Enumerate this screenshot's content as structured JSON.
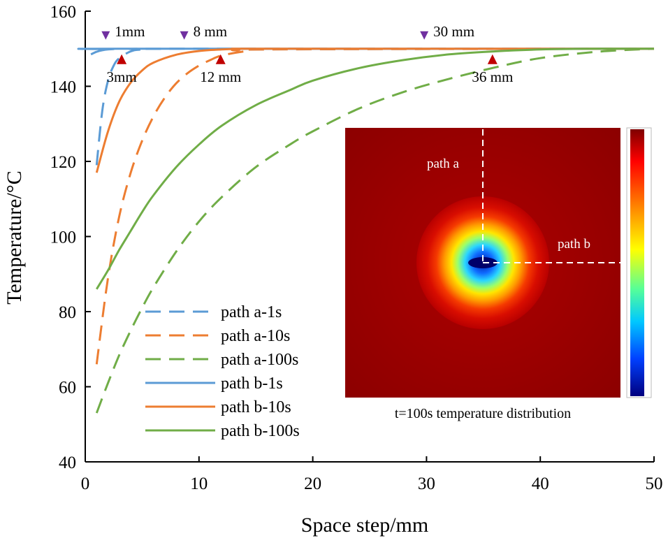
{
  "chart_data": {
    "type": "line",
    "title": "",
    "xlabel": "Space step/mm",
    "ylabel": "Temperature/°C",
    "xlim": [
      0,
      50
    ],
    "ylim": [
      40,
      160
    ],
    "xticks": [
      "0",
      "10",
      "20",
      "30",
      "40",
      "50"
    ],
    "yticks": [
      "40",
      "60",
      "80",
      "100",
      "120",
      "140",
      "160"
    ],
    "grid": false,
    "legend_position": "bottom-left",
    "series": [
      {
        "name": "path a-1s",
        "style": "dashed",
        "color": "#5b9bd5",
        "x": [
          1,
          1.5,
          2,
          2.5,
          3,
          4,
          5,
          8,
          50
        ],
        "y": [
          119,
          133.5,
          141.5,
          145.5,
          147.5,
          149.3,
          149.8,
          150,
          150
        ]
      },
      {
        "name": "path a-10s",
        "style": "dashed",
        "color": "#ed7d31",
        "x": [
          1,
          2,
          3,
          4,
          5,
          6,
          7,
          8,
          9,
          10,
          11,
          12,
          14,
          16,
          50
        ],
        "y": [
          66,
          89,
          105.5,
          117,
          125.5,
          132,
          137,
          140.8,
          143.5,
          145.5,
          147,
          148.2,
          149.3,
          149.8,
          150
        ]
      },
      {
        "name": "path a-100s",
        "style": "dashed",
        "color": "#70ad47",
        "x": [
          1,
          2,
          3,
          4,
          5,
          6,
          8,
          10,
          12,
          15,
          18,
          20,
          24,
          28,
          32,
          36,
          40,
          45,
          50
        ],
        "y": [
          53,
          61,
          68.5,
          75,
          81,
          86.5,
          96,
          104,
          110.5,
          118.5,
          124.5,
          128,
          134,
          138.5,
          142,
          145,
          147.5,
          149.2,
          150
        ]
      },
      {
        "name": "path b-1s",
        "style": "solid",
        "color": "#5b9bd5",
        "x": [
          0.5,
          1,
          1.5,
          2,
          2.5,
          3,
          50
        ],
        "y": [
          148.5,
          149.2,
          149.6,
          149.8,
          149.9,
          150,
          150
        ]
      },
      {
        "name": "path b-10s",
        "style": "solid",
        "color": "#ed7d31",
        "x": [
          1,
          2,
          3,
          4,
          5,
          6,
          8,
          10,
          12,
          14,
          16,
          50
        ],
        "y": [
          117,
          128,
          136,
          141,
          144.2,
          146.3,
          148.4,
          149.4,
          149.8,
          150,
          150,
          150
        ]
      },
      {
        "name": "path b-100s",
        "style": "solid",
        "color": "#70ad47",
        "x": [
          1,
          2,
          3,
          4,
          5,
          6,
          8,
          10,
          12,
          15,
          18,
          20,
          24,
          28,
          32,
          36,
          40,
          45,
          50
        ],
        "y": [
          86,
          91,
          96.5,
          101.5,
          106.5,
          111,
          118.5,
          124.5,
          129.5,
          135,
          139,
          141.5,
          144.8,
          147,
          148.5,
          149.3,
          149.8,
          150,
          150
        ]
      }
    ],
    "annotations": [
      {
        "text": "1mm",
        "x": 1.8,
        "marker": "down-triangle",
        "color": "#7030a0"
      },
      {
        "text": "8 mm",
        "x": 8.7,
        "marker": "down-triangle",
        "color": "#7030a0"
      },
      {
        "text": "30 mm",
        "x": 29.8,
        "marker": "down-triangle",
        "color": "#7030a0"
      },
      {
        "text": "3mm",
        "x": 3.2,
        "marker": "up-triangle",
        "color": "#c00000"
      },
      {
        "text": "12 mm",
        "x": 11.9,
        "marker": "up-triangle",
        "color": "#c00000"
      },
      {
        "text": "36 mm",
        "x": 35.8,
        "marker": "up-triangle",
        "color": "#c00000"
      }
    ]
  },
  "inset": {
    "label_a": "path a",
    "label_b": "path b",
    "caption": "t=100s temperature distribution"
  }
}
